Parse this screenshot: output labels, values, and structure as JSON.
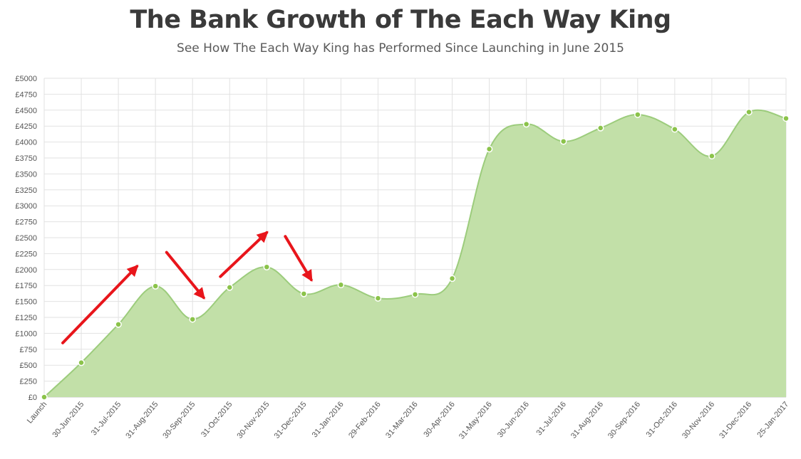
{
  "title": "The Bank Growth of The Each Way King",
  "subtitle": "See How The Each Way King has Performed Since Launching in June 2015",
  "colors": {
    "fill": "#c2e0a8",
    "line": "#9ccc7c",
    "point": "#8bc34a",
    "grid": "#e2e2e2",
    "arrow": "#e8151b"
  },
  "chart_data": {
    "type": "area",
    "title": "The Bank Growth of The Each Way King",
    "xlabel": "",
    "ylabel": "",
    "categories": [
      "Launch",
      "30-Jun-2015",
      "31-Jul-2015",
      "31-Aug-2015",
      "30-Sep-2015",
      "31-Oct-2015",
      "30-Nov-2015",
      "31-Dec-2015",
      "31-Jan-2016",
      "29-Feb-2016",
      "31-Mar-2016",
      "30-Apr-2016",
      "31-May-2016",
      "30-Jun-2016",
      "31-Jul-2016",
      "31-Aug-2016",
      "30-Sep-2016",
      "31-Oct-2016",
      "30-Nov-2016",
      "31-Dec-2016",
      "25-Jan-2017"
    ],
    "values": [
      0,
      540,
      1140,
      1740,
      1220,
      1720,
      2040,
      1620,
      1760,
      1550,
      1610,
      1860,
      3890,
      4280,
      4010,
      4220,
      4430,
      4200,
      3780,
      4470,
      4370
    ],
    "ylim": [
      0,
      5000
    ],
    "yticks": [
      0,
      250,
      500,
      750,
      1000,
      1250,
      1500,
      1750,
      2000,
      2250,
      2500,
      2750,
      3000,
      3250,
      3500,
      3750,
      4000,
      4250,
      4500,
      4750,
      5000
    ],
    "ytick_labels": [
      "£0",
      "£250",
      "£500",
      "£750",
      "£1000",
      "£1250",
      "£1500",
      "£1750",
      "£2000",
      "£2250",
      "£2500",
      "£2750",
      "£3000",
      "£3250",
      "£3500",
      "£3750",
      "£4000",
      "£4250",
      "£4500",
      "£4750",
      "£5000"
    ],
    "grid": true,
    "legend": "none",
    "annotations": [
      {
        "type": "arrow",
        "direction": "up",
        "from": {
          "x": 0.5,
          "y": 850
        },
        "to": {
          "x": 2.5,
          "y": 2050
        }
      },
      {
        "type": "arrow",
        "direction": "down",
        "from": {
          "x": 3.3,
          "y": 2270
        },
        "to": {
          "x": 4.3,
          "y": 1560
        }
      },
      {
        "type": "arrow",
        "direction": "up",
        "from": {
          "x": 4.75,
          "y": 1890
        },
        "to": {
          "x": 6.0,
          "y": 2580
        }
      },
      {
        "type": "arrow",
        "direction": "down",
        "from": {
          "x": 6.5,
          "y": 2520
        },
        "to": {
          "x": 7.2,
          "y": 1840
        }
      }
    ]
  }
}
